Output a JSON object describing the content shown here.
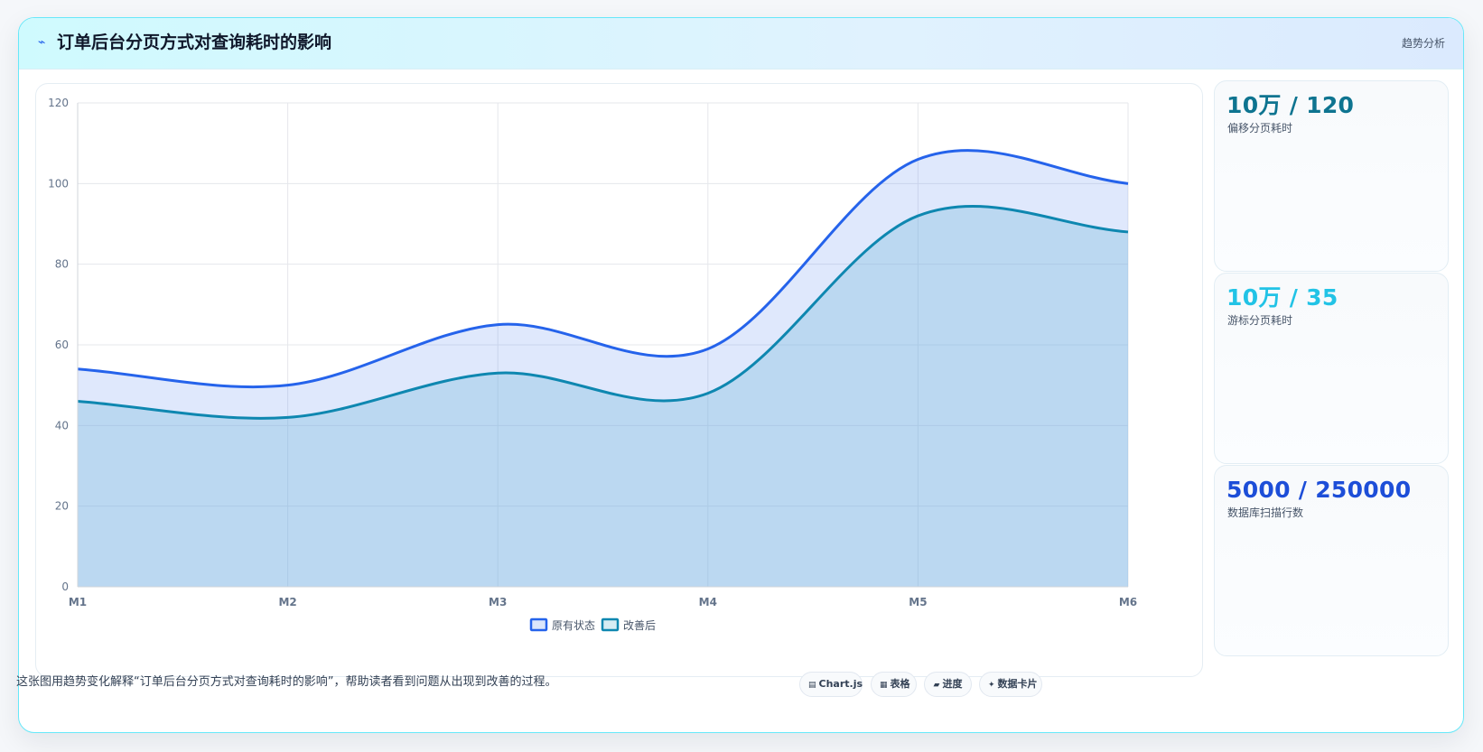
{
  "header": {
    "icon": "chart-line-icon",
    "title": "订单后台分页方式对查询耗时的影响",
    "tag": "趋势分析"
  },
  "stats": [
    {
      "value": "10万 / 120",
      "label": "偏移分页耗时",
      "color": "#0e7490"
    },
    {
      "value": "10万 / 35",
      "label": "游标分页耗时",
      "color": "#22c3e6"
    },
    {
      "value": "5000 / 250000",
      "label": "数据库扫描行数",
      "color": "#1d4ed8"
    }
  ],
  "footer": {
    "caption": "这张图用趋势变化解释“订单后台分页方式对查询耗时的影响”，帮助读者看到问题从出现到改善的过程。",
    "chips": [
      {
        "icon": "chart-icon",
        "label": "Chart.js"
      },
      {
        "icon": "table-icon",
        "label": "表格"
      },
      {
        "icon": "progress-icon",
        "label": "进度"
      },
      {
        "icon": "card-icon",
        "label": "数据卡片"
      }
    ]
  },
  "chart_data": {
    "type": "area",
    "categories": [
      "M1",
      "M2",
      "M3",
      "M4",
      "M5",
      "M6"
    ],
    "series": [
      {
        "name": "原有状态",
        "values": [
          54,
          50,
          65,
          59,
          106,
          100
        ],
        "color": "#2563eb"
      },
      {
        "name": "改善后",
        "values": [
          46,
          42,
          53,
          48,
          92,
          88
        ],
        "color": "#0e87b0"
      }
    ],
    "ylim": [
      0,
      120
    ],
    "yticks": [
      0,
      20,
      40,
      60,
      80,
      100,
      120
    ],
    "grid": true,
    "legend": "bottom",
    "title": "",
    "xlabel": "",
    "ylabel": ""
  }
}
